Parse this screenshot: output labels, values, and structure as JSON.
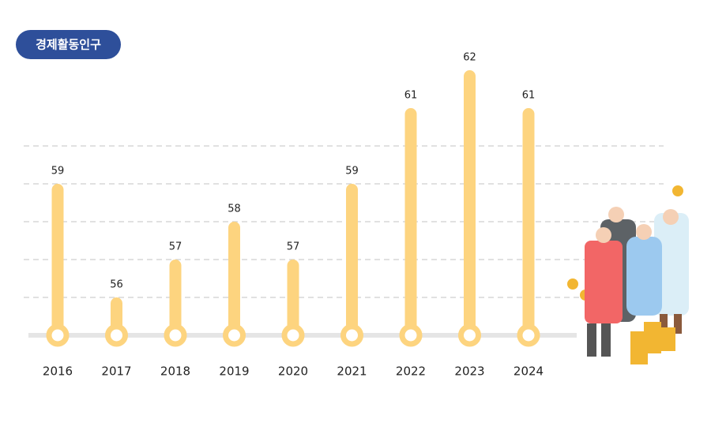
{
  "chart_data": {
    "type": "bar",
    "title": "경제활동인구",
    "categories": [
      "2016",
      "2017",
      "2018",
      "2019",
      "2020",
      "2021",
      "2022",
      "2023",
      "2024"
    ],
    "values": [
      59,
      56,
      57,
      58,
      57,
      59,
      61,
      62,
      61
    ],
    "color": "#fdd47f",
    "ylim": [
      55,
      63
    ],
    "yticks": [
      56,
      57,
      58,
      59,
      60
    ],
    "grid": true
  }
}
